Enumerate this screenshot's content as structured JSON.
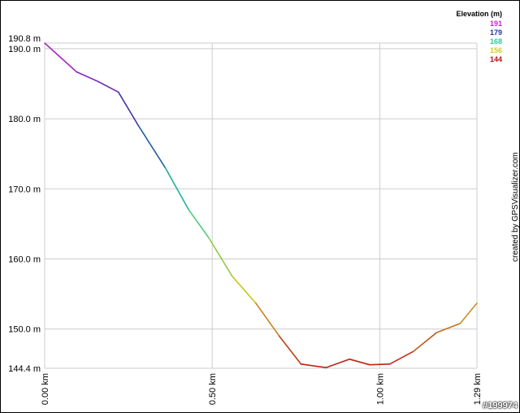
{
  "chart_data": {
    "type": "line",
    "title": "",
    "xlabel": "",
    "ylabel": "",
    "xlim": [
      0,
      1.29
    ],
    "ylim": [
      144.4,
      190.8
    ],
    "x_ticks": [
      {
        "value": 0,
        "label": "0.00 km"
      },
      {
        "value": 0.5,
        "label": "0.50 km"
      },
      {
        "value": 1.0,
        "label": "1.00 km"
      },
      {
        "value": 1.29,
        "label": "1.29 km"
      }
    ],
    "y_ticks": [
      {
        "value": 144.4,
        "label": "144.4 m"
      },
      {
        "value": 150,
        "label": "150.0 m"
      },
      {
        "value": 160,
        "label": "160.0 m"
      },
      {
        "value": 170,
        "label": "170.0 m"
      },
      {
        "value": 180,
        "label": "180.0 m"
      },
      {
        "value": 190,
        "label": "190.0 m"
      },
      {
        "value": 190.8,
        "label": "190.8 m"
      }
    ],
    "grid": true,
    "x": [
      0,
      0.095,
      0.16,
      0.22,
      0.28,
      0.36,
      0.43,
      0.49,
      0.56,
      0.63,
      0.7,
      0.765,
      0.84,
      0.91,
      0.97,
      1.03,
      1.1,
      1.17,
      1.24,
      1.29
    ],
    "y": [
      190.8,
      186.7,
      185.3,
      183.8,
      179.0,
      173.0,
      167.0,
      163.0,
      157.5,
      153.7,
      149.0,
      145.0,
      144.5,
      145.7,
      144.9,
      145.0,
      146.8,
      149.5,
      150.8,
      153.7
    ],
    "color_scale": [
      {
        "label": "191",
        "color": "#cc22cc"
      },
      {
        "label": "179",
        "color": "#2233aa"
      },
      {
        "label": "168",
        "color": "#22cc99"
      },
      {
        "label": "156",
        "color": "#cccc22"
      },
      {
        "label": "144",
        "color": "#bb1111"
      }
    ]
  },
  "legend": {
    "title": "Elevation (m)",
    "placement": "top-right"
  },
  "credit": "created by GPSVisualizer.com",
  "badge": "#199974"
}
